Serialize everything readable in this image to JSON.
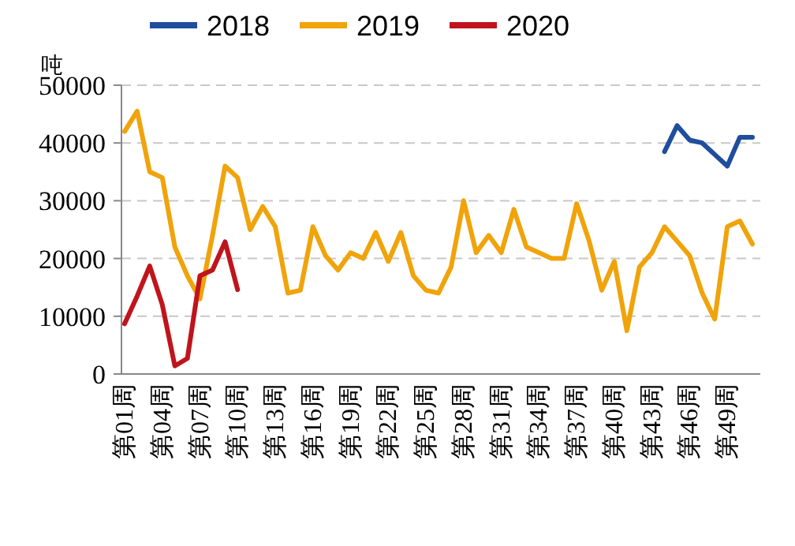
{
  "chart_data": {
    "type": "line",
    "ylabel": "吨",
    "categories": [
      "第01周",
      null,
      null,
      "第04周",
      null,
      null,
      "第07周",
      null,
      null,
      "第10周",
      null,
      null,
      "第13周",
      null,
      null,
      "第16周",
      null,
      null,
      "第19周",
      null,
      null,
      "第22周",
      null,
      null,
      "第25周",
      null,
      null,
      "第28周",
      null,
      null,
      "第31周",
      null,
      null,
      "第34周",
      null,
      null,
      "第37周",
      null,
      null,
      "第40周",
      null,
      null,
      "第43周",
      null,
      null,
      "第46周",
      null,
      null,
      "第49周",
      null,
      null
    ],
    "series": [
      {
        "name": "2018",
        "color": "#1f4e9c",
        "values": [
          null,
          null,
          null,
          null,
          null,
          null,
          null,
          null,
          null,
          null,
          null,
          null,
          null,
          null,
          null,
          null,
          null,
          null,
          null,
          null,
          null,
          null,
          null,
          null,
          null,
          null,
          null,
          null,
          null,
          null,
          null,
          null,
          null,
          null,
          null,
          null,
          null,
          null,
          null,
          null,
          null,
          null,
          null,
          38500,
          43000,
          40500,
          40000,
          38000,
          36000,
          41000,
          41000
        ]
      },
      {
        "name": "2019",
        "color": "#f0a30a",
        "values": [
          42000,
          45500,
          35000,
          34000,
          22000,
          17000,
          13000,
          24000,
          36000,
          34000,
          25000,
          29000,
          25500,
          14000,
          14500,
          25500,
          20500,
          18000,
          21000,
          20000,
          24500,
          19500,
          24500,
          17000,
          14500,
          14000,
          18500,
          30000,
          21000,
          24000,
          21000,
          28500,
          22000,
          21000,
          20000,
          20000,
          29500,
          23000,
          14500,
          19500,
          7500,
          18500,
          21000,
          25500,
          23000,
          20500,
          14000,
          9500,
          25500,
          26500,
          22500
        ]
      },
      {
        "name": "2020",
        "color": "#c0141c",
        "values": [
          8700,
          13500,
          18700,
          12000,
          1400,
          2700,
          17000,
          18000,
          22900,
          14600,
          null,
          null,
          null,
          null,
          null,
          null,
          null,
          null,
          null,
          null,
          null,
          null,
          null,
          null,
          null,
          null,
          null,
          null,
          null,
          null,
          null,
          null,
          null,
          null,
          null,
          null,
          null,
          null,
          null,
          null,
          null,
          null,
          null,
          null,
          null,
          null,
          null,
          null,
          null,
          null,
          null
        ]
      }
    ],
    "ylim": [
      0,
      50000
    ],
    "yticks": [
      0,
      10000,
      20000,
      30000,
      40000,
      50000
    ],
    "grid": "y",
    "legend": "top",
    "marker": "none",
    "line_style": "solid"
  }
}
